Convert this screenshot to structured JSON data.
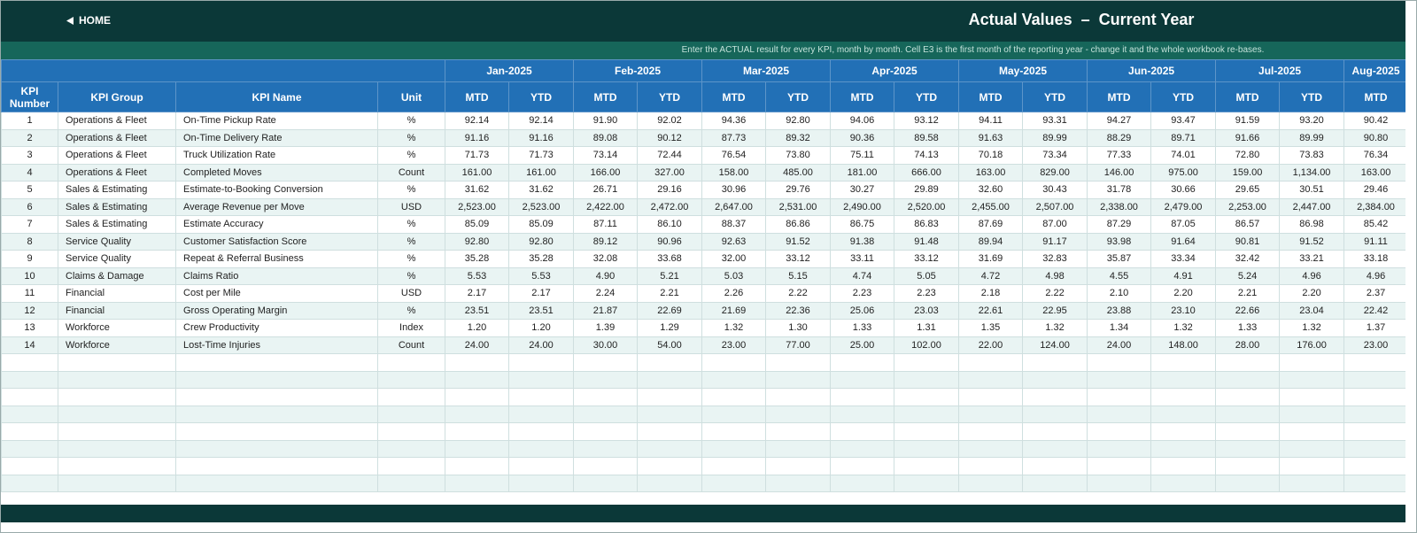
{
  "header": {
    "home": "HOME",
    "title": "Actual Values  –  Current Year",
    "note": "Enter the ACTUAL result for every KPI, month by month. Cell E3 is the first month of the reporting year - change it and the whole workbook re-bases."
  },
  "table": {
    "columns": [
      "KPI Number",
      "KPI Group",
      "KPI Name",
      "Unit"
    ],
    "months": [
      "Jan-2025",
      "Feb-2025",
      "Mar-2025",
      "Apr-2025",
      "May-2025",
      "Jun-2025",
      "Jul-2025",
      "Aug-2025"
    ],
    "sub_headers": [
      "MTD",
      "YTD"
    ],
    "rows": [
      [
        "1",
        "Operations & Fleet",
        "On-Time Pickup Rate",
        "%",
        "92.14",
        "92.14",
        "91.90",
        "92.02",
        "94.36",
        "92.80",
        "94.06",
        "93.12",
        "94.11",
        "93.31",
        "94.27",
        "93.47",
        "91.59",
        "93.20",
        "90.42"
      ],
      [
        "2",
        "Operations & Fleet",
        "On-Time Delivery Rate",
        "%",
        "91.16",
        "91.16",
        "89.08",
        "90.12",
        "87.73",
        "89.32",
        "90.36",
        "89.58",
        "91.63",
        "89.99",
        "88.29",
        "89.71",
        "91.66",
        "89.99",
        "90.80"
      ],
      [
        "3",
        "Operations & Fleet",
        "Truck Utilization Rate",
        "%",
        "71.73",
        "71.73",
        "73.14",
        "72.44",
        "76.54",
        "73.80",
        "75.11",
        "74.13",
        "70.18",
        "73.34",
        "77.33",
        "74.01",
        "72.80",
        "73.83",
        "76.34"
      ],
      [
        "4",
        "Operations & Fleet",
        "Completed Moves",
        "Count",
        "161.00",
        "161.00",
        "166.00",
        "327.00",
        "158.00",
        "485.00",
        "181.00",
        "666.00",
        "163.00",
        "829.00",
        "146.00",
        "975.00",
        "159.00",
        "1,134.00",
        "163.00"
      ],
      [
        "5",
        "Sales & Estimating",
        "Estimate-to-Booking Conversion",
        "%",
        "31.62",
        "31.62",
        "26.71",
        "29.16",
        "30.96",
        "29.76",
        "30.27",
        "29.89",
        "32.60",
        "30.43",
        "31.78",
        "30.66",
        "29.65",
        "30.51",
        "29.46"
      ],
      [
        "6",
        "Sales & Estimating",
        "Average Revenue per Move",
        "USD",
        "2,523.00",
        "2,523.00",
        "2,422.00",
        "2,472.00",
        "2,647.00",
        "2,531.00",
        "2,490.00",
        "2,520.00",
        "2,455.00",
        "2,507.00",
        "2,338.00",
        "2,479.00",
        "2,253.00",
        "2,447.00",
        "2,384.00"
      ],
      [
        "7",
        "Sales & Estimating",
        "Estimate Accuracy",
        "%",
        "85.09",
        "85.09",
        "87.11",
        "86.10",
        "88.37",
        "86.86",
        "86.75",
        "86.83",
        "87.69",
        "87.00",
        "87.29",
        "87.05",
        "86.57",
        "86.98",
        "85.42"
      ],
      [
        "8",
        "Service Quality",
        "Customer Satisfaction Score",
        "%",
        "92.80",
        "92.80",
        "89.12",
        "90.96",
        "92.63",
        "91.52",
        "91.38",
        "91.48",
        "89.94",
        "91.17",
        "93.98",
        "91.64",
        "90.81",
        "91.52",
        "91.11"
      ],
      [
        "9",
        "Service Quality",
        "Repeat & Referral Business",
        "%",
        "35.28",
        "35.28",
        "32.08",
        "33.68",
        "32.00",
        "33.12",
        "33.11",
        "33.12",
        "31.69",
        "32.83",
        "35.87",
        "33.34",
        "32.42",
        "33.21",
        "33.18"
      ],
      [
        "10",
        "Claims & Damage",
        "Claims Ratio",
        "%",
        "5.53",
        "5.53",
        "4.90",
        "5.21",
        "5.03",
        "5.15",
        "4.74",
        "5.05",
        "4.72",
        "4.98",
        "4.55",
        "4.91",
        "5.24",
        "4.96",
        "4.96"
      ],
      [
        "11",
        "Financial",
        "Cost per Mile",
        "USD",
        "2.17",
        "2.17",
        "2.24",
        "2.21",
        "2.26",
        "2.22",
        "2.23",
        "2.23",
        "2.18",
        "2.22",
        "2.10",
        "2.20",
        "2.21",
        "2.20",
        "2.37"
      ],
      [
        "12",
        "Financial",
        "Gross Operating Margin",
        "%",
        "23.51",
        "23.51",
        "21.87",
        "22.69",
        "21.69",
        "22.36",
        "25.06",
        "23.03",
        "22.61",
        "22.95",
        "23.88",
        "23.10",
        "22.66",
        "23.04",
        "22.42"
      ],
      [
        "13",
        "Workforce",
        "Crew Productivity",
        "Index",
        "1.20",
        "1.20",
        "1.39",
        "1.29",
        "1.32",
        "1.30",
        "1.33",
        "1.31",
        "1.35",
        "1.32",
        "1.34",
        "1.32",
        "1.33",
        "1.32",
        "1.37"
      ],
      [
        "14",
        "Workforce",
        "Lost-Time Injuries",
        "Count",
        "24.00",
        "24.00",
        "30.00",
        "54.00",
        "23.00",
        "77.00",
        "25.00",
        "102.00",
        "22.00",
        "124.00",
        "24.00",
        "148.00",
        "28.00",
        "176.00",
        "23.00"
      ]
    ]
  }
}
